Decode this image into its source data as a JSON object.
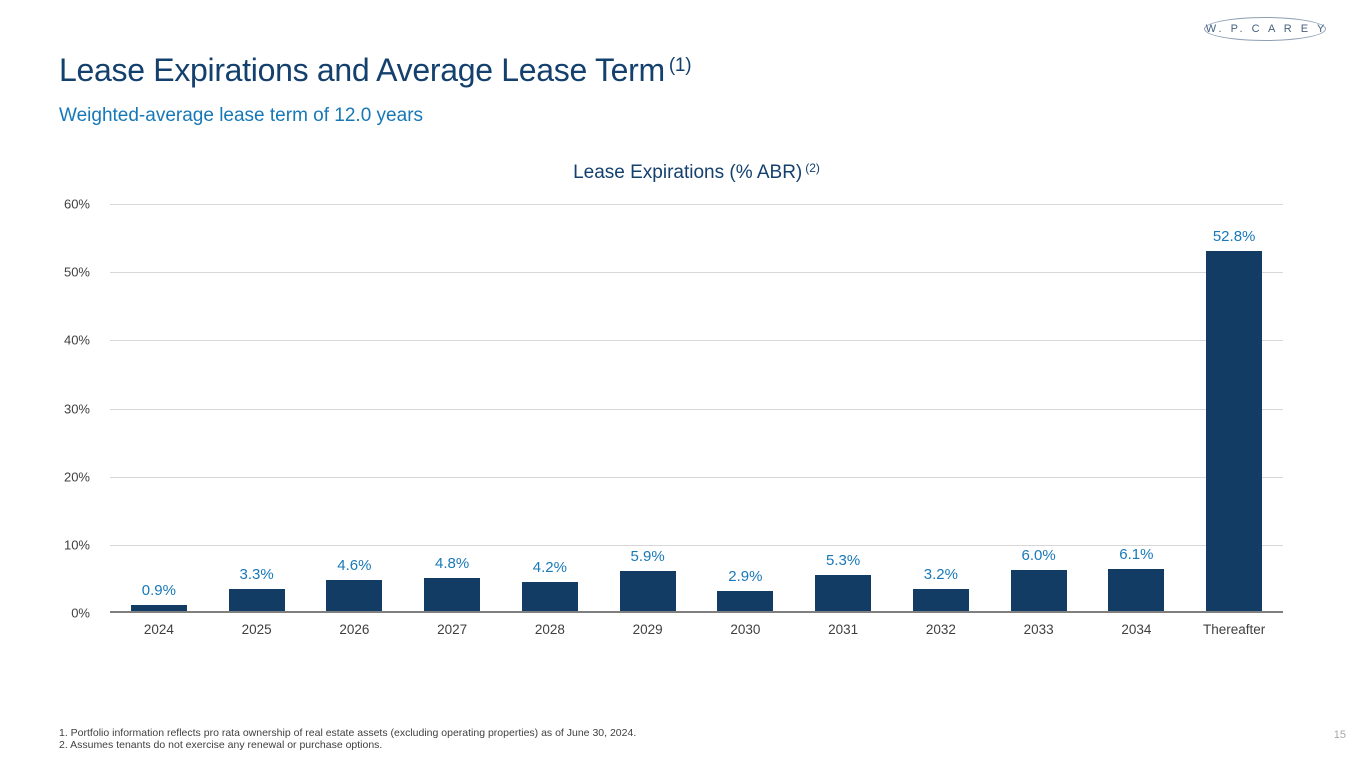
{
  "slide": {
    "logo_text": "W. P. C A R E Y",
    "title": "Lease Expirations and Average Lease Term",
    "title_superscript": "(1)",
    "subtitle": "Weighted-average lease term of 12.0 years",
    "footnotes": [
      "1. Portfolio information reflects pro rata ownership of real estate assets (excluding operating properties) as of June 30, 2024.",
      "2. Assumes tenants do not exercise any renewal or purchase options."
    ],
    "page_number": "15"
  },
  "chart_data": {
    "type": "bar",
    "title": "Lease Expirations (% ABR)",
    "title_superscript": "(2)",
    "categories": [
      "2024",
      "2025",
      "2026",
      "2027",
      "2028",
      "2029",
      "2030",
      "2031",
      "2032",
      "2033",
      "2034",
      "Thereafter"
    ],
    "values": [
      0.9,
      3.3,
      4.6,
      4.8,
      4.2,
      5.9,
      2.9,
      5.3,
      3.2,
      6.0,
      6.1,
      52.8
    ],
    "value_labels": [
      "0.9%",
      "3.3%",
      "4.6%",
      "4.8%",
      "4.2%",
      "5.9%",
      "2.9%",
      "5.3%",
      "3.2%",
      "6.0%",
      "6.1%",
      "52.8%"
    ],
    "xlabel": "",
    "ylabel": "",
    "ylim": [
      0,
      60
    ],
    "ytick_step": 10,
    "ytick_labels": [
      "0%",
      "10%",
      "20%",
      "30%",
      "40%",
      "50%",
      "60%"
    ],
    "grid": true,
    "legend": "none",
    "bar_color": "#123c63",
    "value_label_color": "#1878b8"
  },
  "colors": {
    "title_navy": "#14406e",
    "accent_blue": "#1678b6",
    "bar_navy": "#123c63",
    "gridline_gray": "#d7d7d7",
    "axis_gray": "#7f7f7f"
  }
}
